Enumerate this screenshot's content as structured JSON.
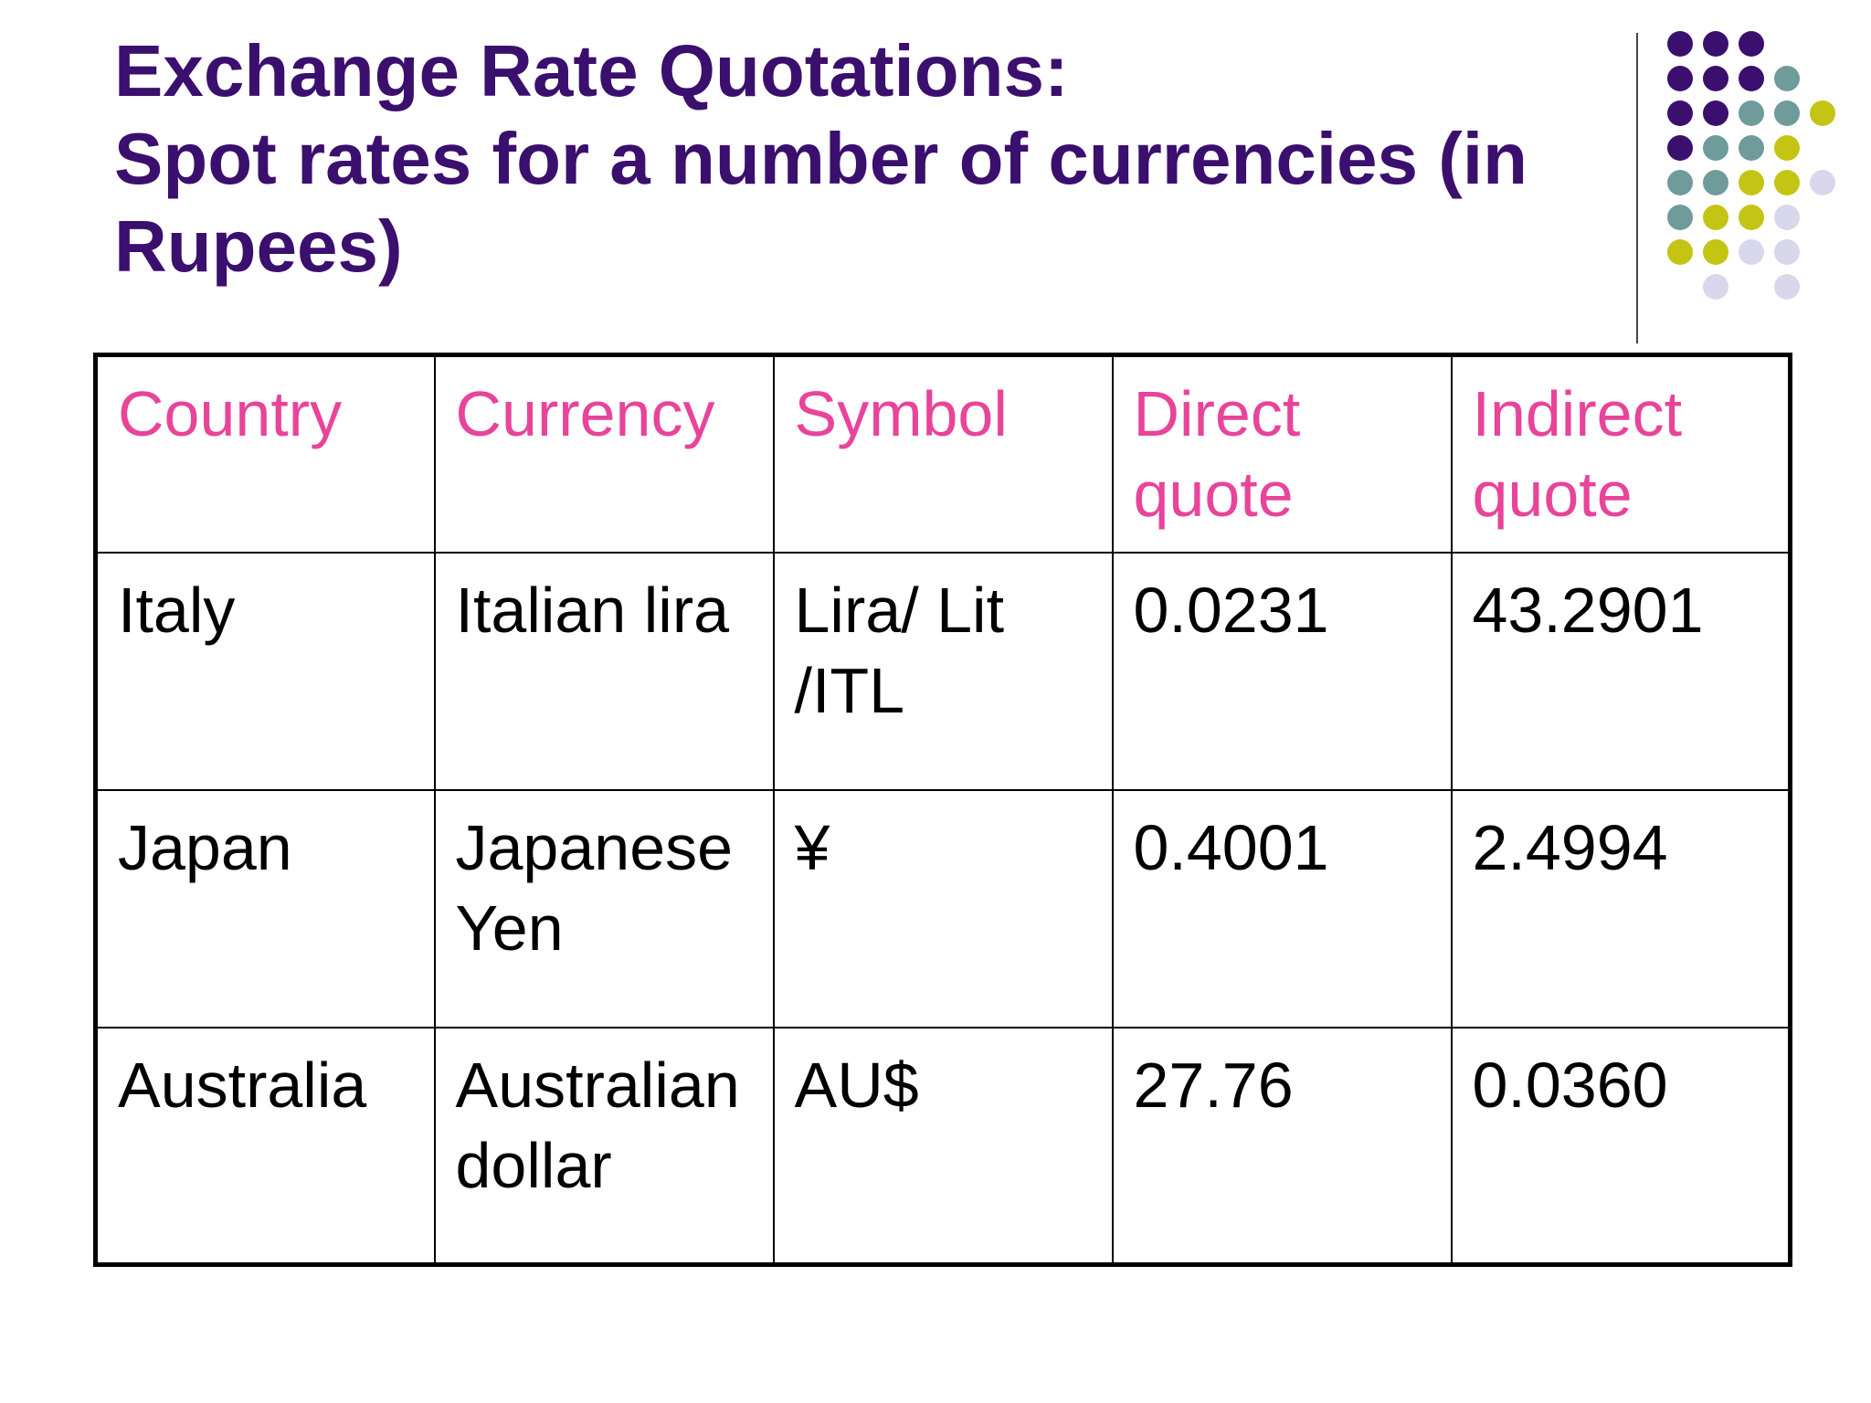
{
  "slide": {
    "title_line1": "Exchange Rate Quotations:",
    "title_line2": "Spot rates for a number of currencies (in",
    "title_line3": "Rupees)"
  },
  "colors": {
    "title": "#3b0f6e",
    "header_text": "#e8449a",
    "dot_purple": "#3b0f6e",
    "dot_teal": "#6f9b9b",
    "dot_lime": "#c4c414",
    "dot_lavender": "#d9d7eb"
  },
  "decoration": {
    "icon": "dot-grid-icon"
  },
  "table": {
    "headers": [
      "Country",
      "Currency",
      "Symbol",
      "Direct quote",
      "Indirect quote"
    ],
    "rows": [
      [
        "Italy",
        "Italian lira",
        "Lira/ Lit /ITL",
        "0.0231",
        "43.2901"
      ],
      [
        "Japan",
        "Japanese Yen",
        "¥",
        "0.4001",
        "2.4994"
      ],
      [
        "Australia",
        "Australian dollar",
        "AU$",
        "27.76",
        "0.0360"
      ]
    ]
  }
}
